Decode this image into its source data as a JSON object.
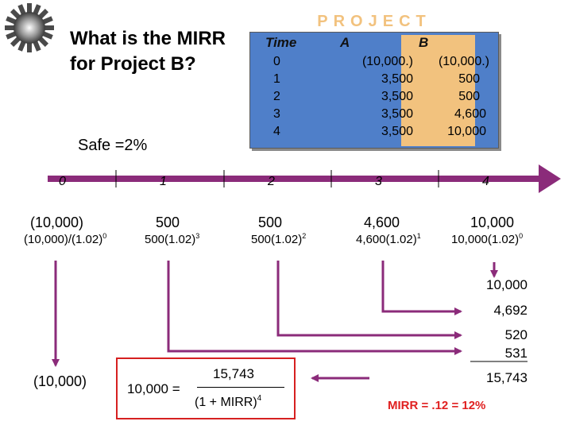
{
  "question": "What is the MIRR for Project B?",
  "safe_rate": "Safe =2%",
  "project_table": {
    "title": "PROJECT",
    "headers": [
      "Time",
      "A",
      "B"
    ],
    "rows": [
      {
        "time": "0",
        "a": "(10,000.)",
        "b": "(10,000.)"
      },
      {
        "time": "1",
        "a": "3,500",
        "b": "500"
      },
      {
        "time": "2",
        "a": "3,500",
        "b": "500"
      },
      {
        "time": "3",
        "a": "3,500",
        "b": "4,600"
      },
      {
        "time": "4",
        "a": "3,500",
        "b": "10,000"
      }
    ]
  },
  "timeline": {
    "periods": [
      "0",
      "1",
      "2",
      "3",
      "4"
    ],
    "cash_flows": [
      "(10,000)",
      "500",
      "500",
      "4,600",
      "10,000"
    ],
    "compounding": [
      {
        "base": "(10,000)/(1.02)",
        "exp": "0"
      },
      {
        "base": "500(1.02)",
        "exp": "3"
      },
      {
        "base": "500(1.02)",
        "exp": "2"
      },
      {
        "base": "4,600(1.02)",
        "exp": "1"
      },
      {
        "base": "10,000(1.02)",
        "exp": "0"
      }
    ]
  },
  "terminal_values": [
    "10,000",
    "4,692",
    "520",
    "531"
  ],
  "terminal_total": "15,743",
  "pv_outflow": "(10,000)",
  "equation": {
    "left": "10,000 =",
    "numerator": "15,743",
    "denominator": "(1 + MIRR)",
    "denominator_exp": "4"
  },
  "result": "MIRR = .12 = 12%",
  "colors": {
    "arrow": "#8b2b7a",
    "table_bg": "#4f7fc9",
    "highlight": "#f2c27e",
    "box_border": "#d62020",
    "result_text": "#e02020"
  }
}
